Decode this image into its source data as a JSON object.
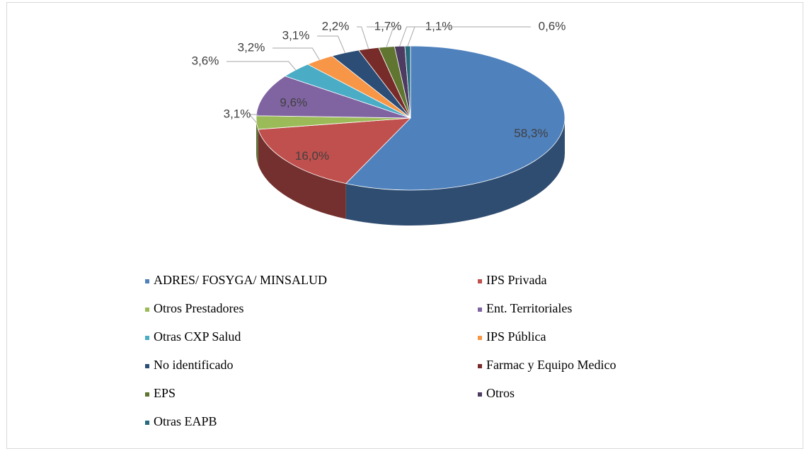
{
  "chart_data": {
    "type": "pie",
    "categories": [
      "ADRES/ FOSYGA/ MINSALUD",
      "IPS Privada",
      "Otros Prestadores",
      "Ent. Territoriales",
      "Otras CXP Salud",
      "IPS Pública",
      "No identificado",
      "Farmac y Equipo Medico",
      "EPS",
      "Otros",
      "Otras EAPB"
    ],
    "values": [
      58.3,
      16.0,
      3.1,
      9.6,
      3.6,
      3.2,
      3.1,
      2.2,
      1.7,
      1.1,
      0.6
    ],
    "value_labels": [
      "58,3%",
      "16,0%",
      "3,1%",
      "9,6%",
      "3,6%",
      "3,2%",
      "3,1%",
      "2,2%",
      "1,7%",
      "1,1%",
      "0,6%"
    ],
    "colors": [
      "#4f81bd",
      "#c0504d",
      "#9bbb59",
      "#8064a2",
      "#4bacc6",
      "#f79646",
      "#2c4d75",
      "#772c2a",
      "#5f7530",
      "#4d3b62",
      "#276a7c"
    ],
    "legend": "bottom"
  }
}
